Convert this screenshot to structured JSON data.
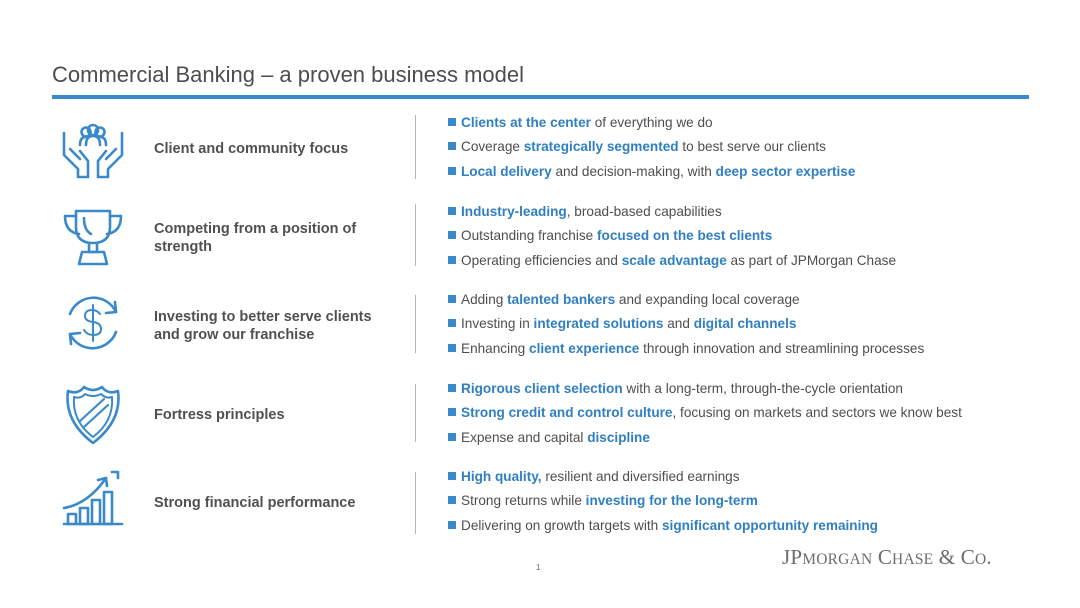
{
  "slide": {
    "title": "Commercial Banking – a proven business model",
    "page_number": "1",
    "logo_text": "JPMorgan Chase & Co."
  },
  "colors": {
    "accent": "#3a8ac9",
    "highlight": "#2f7fc1",
    "text": "#4e4e4e"
  },
  "rows": [
    {
      "icon": "hands-holding-people-icon",
      "label": "Client and community focus",
      "bullets": [
        [
          {
            "t": "Clients at the center",
            "h": true
          },
          {
            "t": " of everything we do",
            "h": false
          }
        ],
        [
          {
            "t": "Coverage ",
            "h": false
          },
          {
            "t": "strategically segmented",
            "h": true
          },
          {
            "t": " to best serve our clients",
            "h": false
          }
        ],
        [
          {
            "t": "Local delivery",
            "h": true
          },
          {
            "t": " and decision-making, with ",
            "h": false
          },
          {
            "t": "deep sector expertise",
            "h": true
          }
        ]
      ]
    },
    {
      "icon": "trophy-icon",
      "label": "Competing from a position of strength",
      "bullets": [
        [
          {
            "t": "Industry-leading",
            "h": true
          },
          {
            "t": ", broad-based capabilities",
            "h": false
          }
        ],
        [
          {
            "t": "Outstanding franchise ",
            "h": false
          },
          {
            "t": "focused on the best clients",
            "h": true
          }
        ],
        [
          {
            "t": "Operating efficiencies and ",
            "h": false
          },
          {
            "t": "scale advantage",
            "h": true
          },
          {
            "t": " as part of JPMorgan Chase",
            "h": false
          }
        ]
      ]
    },
    {
      "icon": "dollar-cycle-icon",
      "label": "Investing to better serve clients and grow our franchise",
      "bullets": [
        [
          {
            "t": "Adding ",
            "h": false
          },
          {
            "t": "talented bankers",
            "h": true
          },
          {
            "t": " and expanding local coverage",
            "h": false
          }
        ],
        [
          {
            "t": "Investing in ",
            "h": false
          },
          {
            "t": "integrated solutions",
            "h": true
          },
          {
            "t": " and ",
            "h": false
          },
          {
            "t": "digital channels",
            "h": true
          }
        ],
        [
          {
            "t": "Enhancing ",
            "h": false
          },
          {
            "t": "client experience",
            "h": true
          },
          {
            "t": " through innovation and streamlining processes",
            "h": false
          }
        ]
      ]
    },
    {
      "icon": "shield-icon",
      "label": "Fortress principles",
      "bullets": [
        [
          {
            "t": "Rigorous client selection",
            "h": true
          },
          {
            "t": " with a long-term, through-the-cycle orientation",
            "h": false
          }
        ],
        [
          {
            "t": "Strong credit and control culture",
            "h": true
          },
          {
            "t": ", focusing on markets and sectors we know best",
            "h": false
          }
        ],
        [
          {
            "t": "Expense and capital ",
            "h": false
          },
          {
            "t": "discipline",
            "h": true
          }
        ]
      ]
    },
    {
      "icon": "growth-bar-chart-icon",
      "label": "Strong financial performance",
      "bullets": [
        [
          {
            "t": "High quality,",
            "h": true
          },
          {
            "t": " resilient and diversified earnings",
            "h": false
          }
        ],
        [
          {
            "t": "Strong returns while ",
            "h": false
          },
          {
            "t": "investing for the long-term",
            "h": true
          }
        ],
        [
          {
            "t": "Delivering on growth targets with ",
            "h": false
          },
          {
            "t": "significant opportunity remaining",
            "h": true
          }
        ]
      ]
    }
  ]
}
